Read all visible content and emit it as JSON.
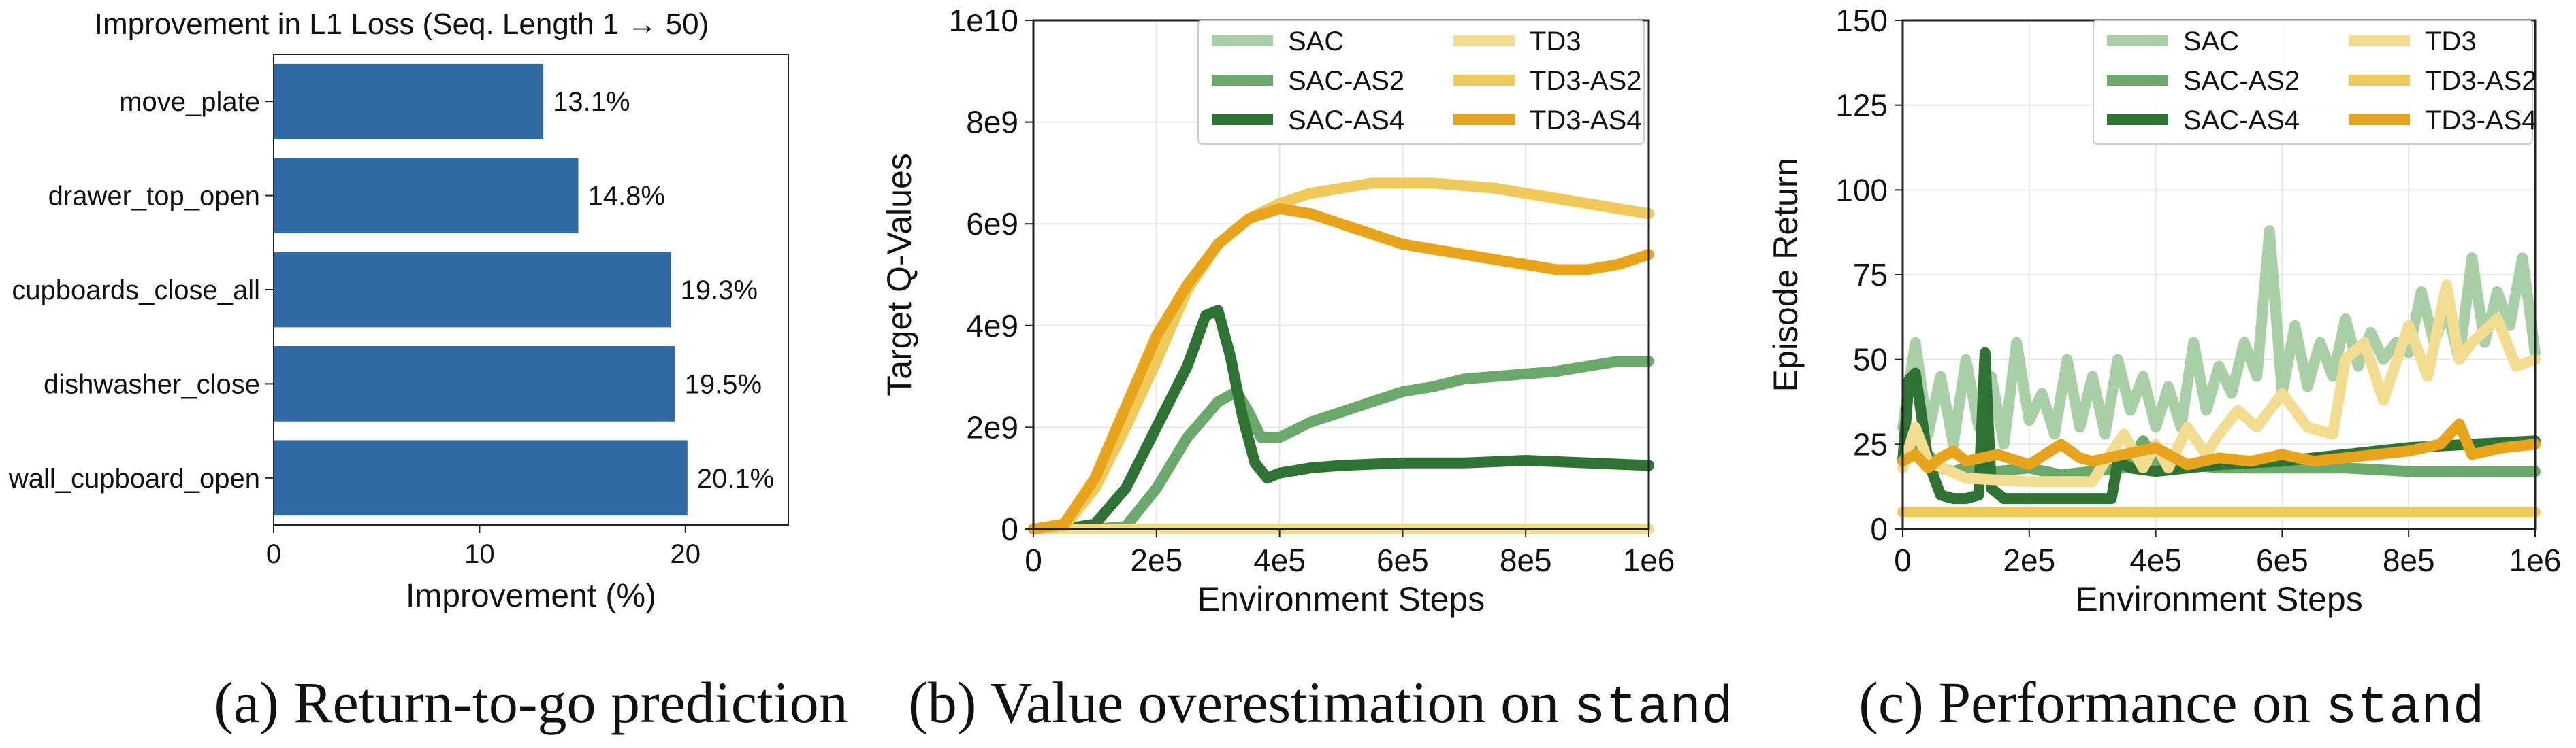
{
  "colors": {
    "bar": "#2f6aa7",
    "sac": "#a8cfa5",
    "sac_as2": "#6aa96b",
    "sac_as4": "#2f7334",
    "td3": "#f2dc8f",
    "td3_as2": "#efc95a",
    "td3_as4": "#e8a51c",
    "grid": "#e6e6e6"
  },
  "captions": [
    {
      "text": "(a) Return-to-go prediction",
      "mono": ""
    },
    {
      "text": "(b) Value overestimation on ",
      "mono": "stand"
    },
    {
      "text": "(c) Performance on ",
      "mono": "stand"
    }
  ],
  "chart_data": [
    {
      "type": "bar",
      "orientation": "horizontal",
      "title": "Improvement in L1 Loss (Seq. Length 1 → 50)",
      "xlabel": "Improvement (%)",
      "ylabel": "",
      "categories": [
        "move_plate",
        "drawer_top_open",
        "cupboards_close_all",
        "dishwasher_close",
        "wall_cupboard_open"
      ],
      "values": [
        13.1,
        14.8,
        19.3,
        19.5,
        20.1
      ],
      "value_labels": [
        "13.1%",
        "14.8%",
        "19.3%",
        "19.5%",
        "20.1%"
      ],
      "xlim": [
        0,
        25
      ],
      "xticks": [
        0,
        10,
        20
      ],
      "xtick_labels": [
        "0",
        "10",
        "20"
      ],
      "grid": false
    },
    {
      "type": "line",
      "title": "",
      "xlabel": "Environment Steps",
      "ylabel": "Target Q-Values",
      "xlim": [
        0,
        1000000
      ],
      "ylim": [
        0,
        10000000000
      ],
      "xticks": [
        0,
        200000,
        400000,
        600000,
        800000,
        1000000
      ],
      "xtick_labels": [
        "0",
        "2e5",
        "4e5",
        "6e5",
        "8e5",
        "1e6"
      ],
      "yticks": [
        0,
        2000000000,
        4000000000,
        6000000000,
        8000000000,
        10000000000
      ],
      "ytick_labels": [
        "0",
        "2e9",
        "4e9",
        "6e9",
        "8e9",
        "1e10"
      ],
      "grid": true,
      "legend": "top-right, 2 columns",
      "series": [
        {
          "name": "SAC",
          "color_key": "sac",
          "x": [
            0,
            1000000
          ],
          "y": [
            0,
            0
          ]
        },
        {
          "name": "SAC-AS2",
          "color_key": "sac_as2",
          "x": [
            0,
            100000,
            150000,
            200000,
            250000,
            300000,
            330000,
            350000,
            370000,
            400000,
            450000,
            500000,
            550000,
            600000,
            650000,
            700000,
            750000,
            800000,
            850000,
            900000,
            950000,
            1000000
          ],
          "y": [
            0,
            0,
            50000000,
            800000000,
            1800000000,
            2500000000,
            2700000000,
            2300000000,
            1800000000,
            1800000000,
            2100000000,
            2300000000,
            2500000000,
            2700000000,
            2800000000,
            2950000000,
            3000000000,
            3050000000,
            3100000000,
            3200000000,
            3300000000,
            3300000000
          ]
        },
        {
          "name": "SAC-AS4",
          "color_key": "sac_as4",
          "x": [
            0,
            50000,
            100000,
            150000,
            200000,
            250000,
            280000,
            300000,
            320000,
            340000,
            360000,
            380000,
            400000,
            450000,
            500000,
            600000,
            700000,
            800000,
            900000,
            1000000
          ],
          "y": [
            0,
            0,
            100000000,
            800000000,
            2000000000,
            3200000000,
            4200000000,
            4300000000,
            3400000000,
            2200000000,
            1300000000,
            1000000000,
            1100000000,
            1200000000,
            1250000000,
            1300000000,
            1300000000,
            1350000000,
            1300000000,
            1250000000
          ]
        },
        {
          "name": "TD3",
          "color_key": "td3",
          "x": [
            0,
            1000000
          ],
          "y": [
            0,
            0
          ]
        },
        {
          "name": "TD3-AS2",
          "color_key": "td3_as2",
          "x": [
            0,
            50000,
            100000,
            150000,
            200000,
            250000,
            300000,
            350000,
            400000,
            450000,
            500000,
            550000,
            600000,
            650000,
            700000,
            750000,
            800000,
            850000,
            900000,
            950000,
            1000000
          ],
          "y": [
            0,
            50000000,
            800000000,
            2000000000,
            3300000000,
            4700000000,
            5600000000,
            6100000000,
            6400000000,
            6600000000,
            6700000000,
            6800000000,
            6800000000,
            6800000000,
            6750000000,
            6700000000,
            6600000000,
            6500000000,
            6400000000,
            6300000000,
            6200000000
          ]
        },
        {
          "name": "TD3-AS4",
          "color_key": "td3_as4",
          "x": [
            0,
            50000,
            100000,
            150000,
            200000,
            250000,
            300000,
            350000,
            400000,
            450000,
            500000,
            550000,
            600000,
            650000,
            700000,
            750000,
            800000,
            850000,
            900000,
            950000,
            1000000
          ],
          "y": [
            0,
            100000000,
            1000000000,
            2400000000,
            3800000000,
            4800000000,
            5600000000,
            6100000000,
            6300000000,
            6200000000,
            6000000000,
            5800000000,
            5600000000,
            5500000000,
            5400000000,
            5300000000,
            5200000000,
            5100000000,
            5100000000,
            5200000000,
            5400000000
          ]
        }
      ]
    },
    {
      "type": "line",
      "title": "",
      "xlabel": "Environment Steps",
      "ylabel": "Episode Return",
      "xlim": [
        0,
        1000000
      ],
      "ylim": [
        0,
        150
      ],
      "xticks": [
        0,
        200000,
        400000,
        600000,
        800000,
        1000000
      ],
      "xtick_labels": [
        "0",
        "2e5",
        "4e5",
        "6e5",
        "8e5",
        "1e6"
      ],
      "yticks": [
        0,
        25,
        50,
        75,
        100,
        125,
        150
      ],
      "ytick_labels": [
        "0",
        "25",
        "50",
        "75",
        "100",
        "125",
        "150"
      ],
      "grid": true,
      "legend": "top-right, 2 columns",
      "series": [
        {
          "name": "SAC",
          "color_key": "sac",
          "x": [
            0,
            20000,
            40000,
            60000,
            80000,
            100000,
            120000,
            140000,
            160000,
            180000,
            200000,
            220000,
            240000,
            260000,
            280000,
            300000,
            320000,
            340000,
            360000,
            380000,
            400000,
            420000,
            440000,
            460000,
            480000,
            500000,
            520000,
            540000,
            560000,
            580000,
            600000,
            620000,
            640000,
            660000,
            680000,
            700000,
            720000,
            740000,
            760000,
            780000,
            800000,
            820000,
            840000,
            860000,
            880000,
            900000,
            920000,
            940000,
            960000,
            980000,
            1000000
          ],
          "y": [
            30,
            55,
            28,
            45,
            25,
            50,
            30,
            45,
            25,
            55,
            32,
            40,
            28,
            50,
            30,
            45,
            28,
            50,
            35,
            45,
            30,
            42,
            30,
            55,
            35,
            48,
            40,
            55,
            45,
            88,
            40,
            60,
            42,
            55,
            45,
            62,
            48,
            58,
            50,
            55,
            52,
            70,
            55,
            65,
            50,
            80,
            55,
            70,
            60,
            80,
            52
          ]
        },
        {
          "name": "SAC-AS2",
          "color_key": "sac_as2",
          "x": [
            0,
            20000,
            40000,
            60000,
            80000,
            100000,
            150000,
            200000,
            250000,
            300000,
            350000,
            380000,
            400000,
            450000,
            500000,
            600000,
            700000,
            800000,
            900000,
            1000000
          ],
          "y": [
            20,
            25,
            22,
            18,
            17,
            18,
            17,
            18,
            16,
            17,
            18,
            26,
            20,
            19,
            18,
            18,
            18,
            17,
            17,
            17
          ]
        },
        {
          "name": "SAC-AS4",
          "color_key": "sac_as4",
          "x": [
            0,
            10000,
            20000,
            40000,
            60000,
            80000,
            100000,
            120000,
            130000,
            140000,
            160000,
            200000,
            250000,
            300000,
            330000,
            340000,
            360000,
            400000,
            500000,
            600000,
            700000,
            800000,
            900000,
            1000000
          ],
          "y": [
            20,
            44,
            46,
            20,
            10,
            9,
            9,
            10,
            52,
            12,
            9,
            9,
            9,
            9,
            9,
            20,
            18,
            17,
            19,
            20,
            22,
            24,
            25,
            26
          ]
        },
        {
          "name": "TD3",
          "color_key": "td3",
          "x": [
            0,
            20000,
            40000,
            100000,
            200000,
            300000,
            320000,
            350000,
            380000,
            400000,
            420000,
            450000,
            480000,
            500000,
            530000,
            560000,
            600000,
            640000,
            680000,
            700000,
            730000,
            760000,
            800000,
            830000,
            860000,
            880000,
            900000,
            940000,
            970000,
            1000000
          ],
          "y": [
            18,
            30,
            20,
            15,
            14,
            14,
            20,
            28,
            18,
            25,
            18,
            30,
            22,
            28,
            35,
            30,
            40,
            30,
            28,
            50,
            55,
            38,
            60,
            45,
            72,
            50,
            55,
            62,
            48,
            50
          ]
        },
        {
          "name": "TD3-AS2",
          "color_key": "td3_as2",
          "x": [
            0,
            1000000
          ],
          "y": [
            5,
            5
          ]
        },
        {
          "name": "TD3-AS4",
          "color_key": "td3_as4",
          "x": [
            0,
            20000,
            40000,
            60000,
            80000,
            100000,
            150000,
            200000,
            250000,
            280000,
            300000,
            350000,
            400000,
            450000,
            500000,
            550000,
            600000,
            650000,
            700000,
            750000,
            800000,
            850000,
            880000,
            900000,
            950000,
            1000000
          ],
          "y": [
            20,
            22,
            18,
            21,
            23,
            20,
            22,
            19,
            25,
            21,
            20,
            22,
            24,
            19,
            21,
            20,
            22,
            20,
            21,
            22,
            23,
            25,
            31,
            22,
            24,
            25
          ]
        }
      ]
    }
  ]
}
